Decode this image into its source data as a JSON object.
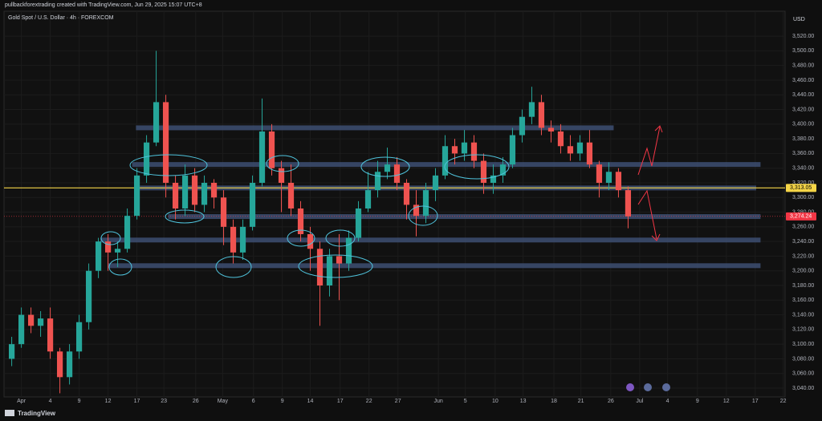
{
  "header": {
    "caption": "pullbackforextrading created with TradingView.com, Jun 29, 2025 15:07 UTC+8"
  },
  "chart_data": {
    "type": "candlestick",
    "title": "Gold Spot / U.S. Dollar · 4h · FOREXCOM",
    "currency": "USD",
    "up_color": "#26a69a",
    "down_color": "#ef5350",
    "x": [
      -1,
      0,
      1,
      2,
      3,
      4,
      5,
      6,
      7,
      8,
      9,
      10,
      11,
      12,
      13,
      14,
      15,
      16,
      17,
      18,
      19,
      20,
      21,
      22,
      23,
      24,
      25,
      26,
      27,
      28,
      29,
      30,
      31,
      32,
      33,
      34,
      35,
      36,
      37,
      38,
      39,
      40,
      41,
      42,
      43,
      44,
      45,
      46,
      47,
      48,
      49,
      50,
      51,
      52,
      53,
      54,
      55,
      56,
      57,
      58,
      59,
      60,
      61,
      62,
      63
    ],
    "open": [
      3080,
      3100,
      3140,
      3125,
      3135,
      3090,
      3055,
      3090,
      3130,
      3200,
      3240,
      3225,
      3230,
      3275,
      3330,
      3375,
      3430,
      3320,
      3285,
      3330,
      3290,
      3320,
      3300,
      3260,
      3225,
      3260,
      3320,
      3390,
      3340,
      3320,
      3285,
      3250,
      3230,
      3180,
      3220,
      3210,
      3245,
      3285,
      3310,
      3335,
      3345,
      3320,
      3290,
      3275,
      3310,
      3330,
      3370,
      3360,
      3375,
      3350,
      3320,
      3330,
      3345,
      3385,
      3410,
      3430,
      3395,
      3390,
      3370,
      3360,
      3375,
      3345,
      3320,
      3335,
      3310
    ],
    "high": [
      3110,
      3150,
      3150,
      3145,
      3150,
      3095,
      3100,
      3140,
      3210,
      3245,
      3250,
      3240,
      3285,
      3340,
      3385,
      3500,
      3440,
      3330,
      3345,
      3340,
      3330,
      3325,
      3310,
      3270,
      3270,
      3330,
      3435,
      3400,
      3350,
      3345,
      3295,
      3260,
      3240,
      3230,
      3250,
      3255,
      3295,
      3335,
      3350,
      3368,
      3355,
      3325,
      3310,
      3320,
      3340,
      3385,
      3380,
      3392,
      3385,
      3360,
      3345,
      3355,
      3395,
      3420,
      3451,
      3440,
      3405,
      3400,
      3385,
      3385,
      3392,
      3350,
      3348,
      3340,
      3315
    ],
    "low": [
      3070,
      3095,
      3115,
      3110,
      3080,
      3033,
      3045,
      3080,
      3120,
      3190,
      3200,
      3205,
      3225,
      3270,
      3320,
      3370,
      3300,
      3270,
      3275,
      3280,
      3280,
      3285,
      3235,
      3210,
      3215,
      3255,
      3315,
      3330,
      3280,
      3275,
      3240,
      3200,
      3125,
      3165,
      3160,
      3200,
      3240,
      3280,
      3300,
      3325,
      3310,
      3270,
      3247,
      3265,
      3295,
      3325,
      3345,
      3350,
      3340,
      3305,
      3305,
      3320,
      3340,
      3375,
      3400,
      3385,
      3375,
      3360,
      3350,
      3350,
      3340,
      3300,
      3310,
      3300,
      3258
    ],
    "close": [
      3100,
      3140,
      3125,
      3135,
      3090,
      3055,
      3090,
      3130,
      3200,
      3240,
      3225,
      3230,
      3275,
      3330,
      3375,
      3430,
      3320,
      3285,
      3330,
      3290,
      3320,
      3300,
      3260,
      3225,
      3260,
      3320,
      3390,
      3340,
      3320,
      3285,
      3250,
      3230,
      3180,
      3220,
      3210,
      3245,
      3285,
      3310,
      3335,
      3345,
      3320,
      3290,
      3275,
      3310,
      3330,
      3370,
      3360,
      3375,
      3350,
      3320,
      3330,
      3345,
      3385,
      3410,
      3430,
      3395,
      3390,
      3370,
      3360,
      3375,
      3345,
      3320,
      3335,
      3310,
      3274.24
    ],
    "xlim": [
      -1.8,
      79.3
    ],
    "ylim": [
      3028,
      3554
    ],
    "xticks": [
      {
        "value": 0,
        "label": "Apr"
      },
      {
        "value": 3,
        "label": "4"
      },
      {
        "value": 6,
        "label": "9"
      },
      {
        "value": 9,
        "label": "12"
      },
      {
        "value": 12,
        "label": "17"
      },
      {
        "value": 14.8,
        "label": "23"
      },
      {
        "value": 18.1,
        "label": "26"
      },
      {
        "value": 20.9,
        "label": "May"
      },
      {
        "value": 24.1,
        "label": "6"
      },
      {
        "value": 27.1,
        "label": "9"
      },
      {
        "value": 30,
        "label": "14"
      },
      {
        "value": 33.1,
        "label": "17"
      },
      {
        "value": 36.1,
        "label": "22"
      },
      {
        "value": 39.1,
        "label": "27"
      },
      {
        "value": 43.3,
        "label": "Jun"
      },
      {
        "value": 46.1,
        "label": "5"
      },
      {
        "value": 49.2,
        "label": "10"
      },
      {
        "value": 52.1,
        "label": "13"
      },
      {
        "value": 55.3,
        "label": "18"
      },
      {
        "value": 58.1,
        "label": "21"
      },
      {
        "value": 61.2,
        "label": "26"
      },
      {
        "value": 64.2,
        "label": "Jul"
      },
      {
        "value": 67.1,
        "label": "4"
      },
      {
        "value": 70.2,
        "label": "9"
      },
      {
        "value": 73.2,
        "label": "12"
      },
      {
        "value": 76.2,
        "label": "17"
      },
      {
        "value": 79.1,
        "label": "22"
      }
    ],
    "yticks": [
      {
        "value": 3040,
        "label": "3,040.00"
      },
      {
        "value": 3060,
        "label": "3,060.00"
      },
      {
        "value": 3080,
        "label": "3,080.00"
      },
      {
        "value": 3100,
        "label": "3,100.00"
      },
      {
        "value": 3120,
        "label": "3,120.00"
      },
      {
        "value": 3140,
        "label": "3,140.00"
      },
      {
        "value": 3160,
        "label": "3,160.00"
      },
      {
        "value": 3180,
        "label": "3,180.00"
      },
      {
        "value": 3200,
        "label": "3,200.00"
      },
      {
        "value": 3220,
        "label": "3,220.00"
      },
      {
        "value": 3240,
        "label": "3,240.00"
      },
      {
        "value": 3260,
        "label": "3,260.00"
      },
      {
        "value": 3280,
        "label": "3,280.00"
      },
      {
        "value": 3300,
        "label": "3,300.00"
      },
      {
        "value": 3320,
        "label": "3,320.00"
      },
      {
        "value": 3340,
        "label": "3,340.00"
      },
      {
        "value": 3360,
        "label": "3,360.00"
      },
      {
        "value": 3380,
        "label": "3,380.00"
      },
      {
        "value": 3400,
        "label": "3,400.00"
      },
      {
        "value": 3420,
        "label": "3,420.00"
      },
      {
        "value": 3440,
        "label": "3,440.00"
      },
      {
        "value": 3460,
        "label": "3,460.00"
      },
      {
        "value": 3480,
        "label": "3,480.00"
      },
      {
        "value": 3500,
        "label": "3,500.00"
      },
      {
        "value": 3520,
        "label": "3,520.00"
      }
    ],
    "grid": true,
    "zones": [
      {
        "level": 3395,
        "start": 11.9,
        "end": 61.5
      },
      {
        "level": 3345,
        "start": 11.5,
        "end": 76.75
      },
      {
        "level": 3313,
        "start": 12.3,
        "end": 76.3
      },
      {
        "level": 3274,
        "start": 15.25,
        "end": 76.75
      },
      {
        "level": 3242,
        "start": 8.2,
        "end": 76.75
      },
      {
        "level": 3207,
        "start": 9,
        "end": 76.75
      }
    ],
    "price_lines": [
      {
        "value": 3313.05,
        "label": "3,313.05",
        "color": "#f5d547"
      },
      {
        "value": 3274.24,
        "label": "3,274.24",
        "color": "#f23645"
      }
    ]
  },
  "footer": {
    "brand": "TradingView"
  }
}
